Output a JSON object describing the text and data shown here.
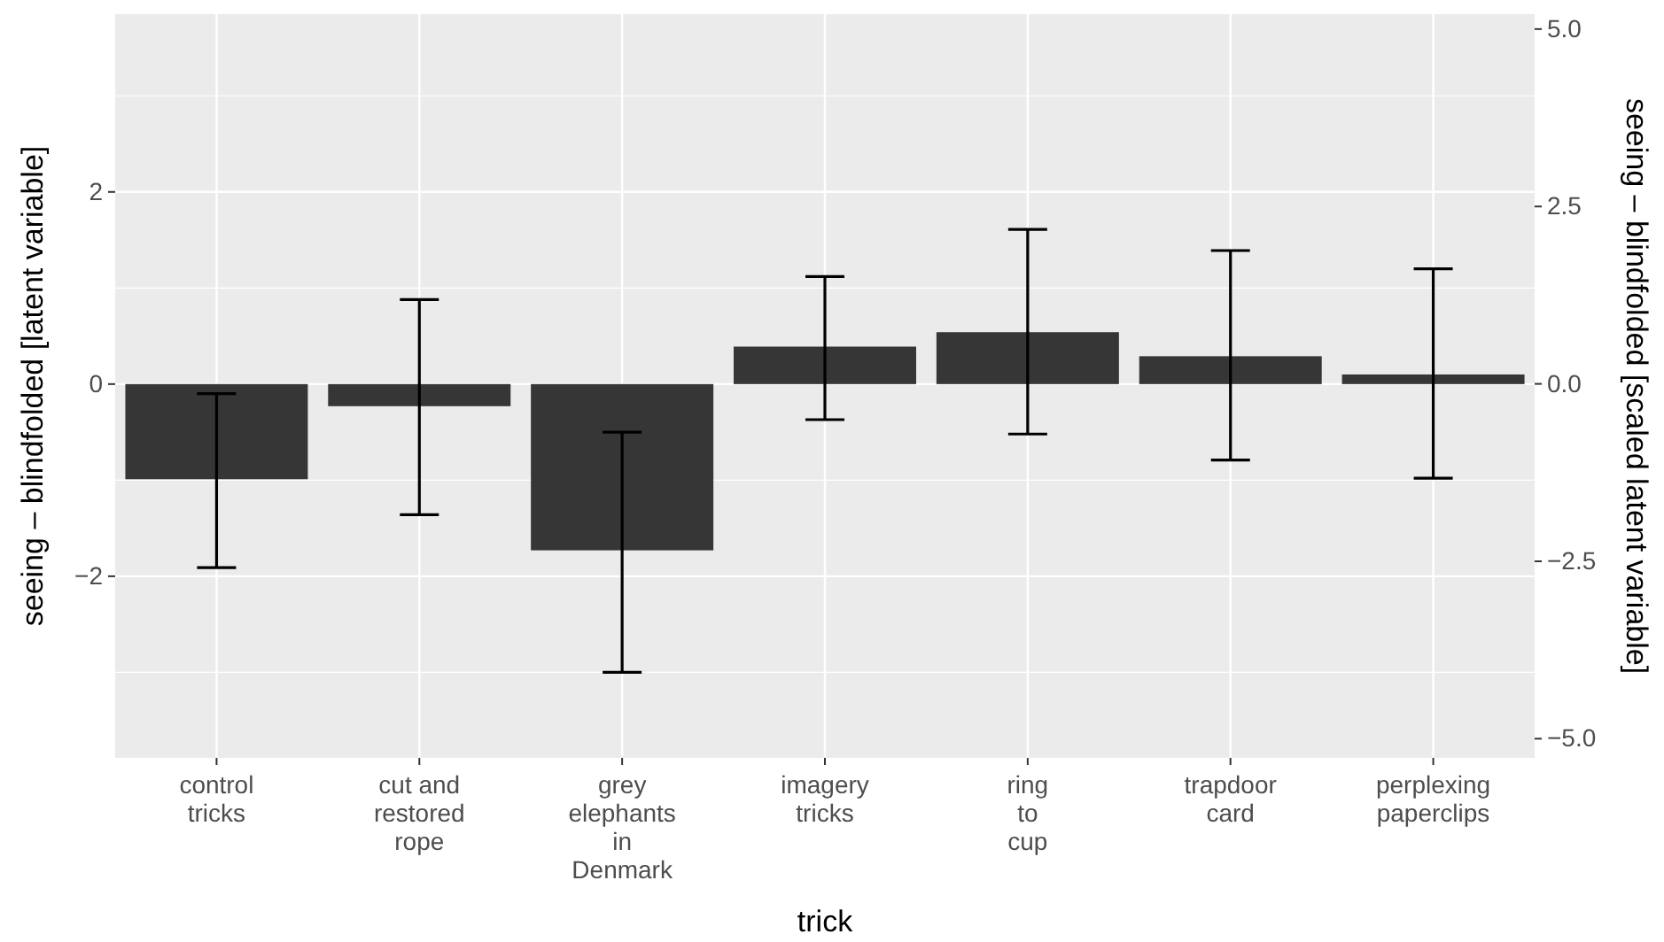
{
  "chart_data": {
    "type": "bar",
    "xlabel": "trick",
    "ylabel": "seeing – blindfolded [latent variable]",
    "y2label": "seeing – blindfolded [scaled latent variable]",
    "categories": [
      "control\ntricks",
      "cut and\nrestored\nrope",
      "grey\nelephants\nin\nDenmark",
      "imagery\ntricks",
      "ring\nto\ncup",
      "trapdoor\ncard",
      "perplexing\npaperclips"
    ],
    "values": [
      -0.99,
      -0.23,
      -1.73,
      0.39,
      0.54,
      0.29,
      0.1
    ],
    "errors": [
      [
        -1.91,
        -0.1
      ],
      [
        -1.36,
        0.88
      ],
      [
        -3.0,
        -0.5
      ],
      [
        -0.37,
        1.12
      ],
      [
        -0.52,
        1.61
      ],
      [
        -0.79,
        1.39
      ],
      [
        -0.98,
        1.2
      ]
    ],
    "color": "#363636",
    "ylim": [
      -3.89,
      3.85
    ],
    "yticks": [
      -2,
      0,
      2
    ],
    "y2lim": [
      -5.27,
      5.21
    ],
    "y2ticks": [
      {
        "value": -5,
        "label": "−5.0"
      },
      {
        "value": -2.5,
        "label": "−2.5"
      },
      {
        "value": 0,
        "label": "0.0"
      },
      {
        "value": 2.5,
        "label": "2.5"
      },
      {
        "value": 5,
        "label": "5.0"
      }
    ],
    "grid": true
  }
}
